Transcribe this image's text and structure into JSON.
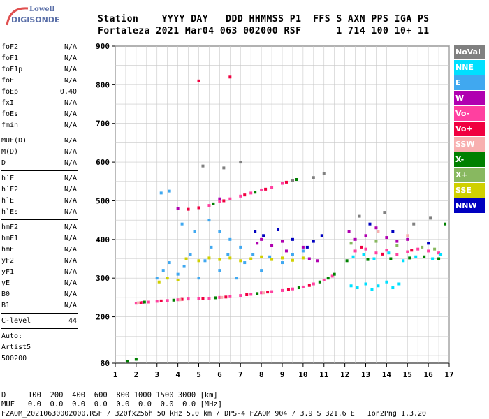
{
  "logo": {
    "brand_top": "Lowell",
    "brand_name": "DIGISONDE"
  },
  "header": {
    "line1": "Station    YYYY DAY   DDD HHMMSS P1  FFS S AXN PPS IGA PS",
    "line2": "Fortaleza 2021 Mar04 063 002000 RSF      1 714 100 10+ 11"
  },
  "params": {
    "group1": [
      {
        "name": "foF2",
        "value": "N/A"
      },
      {
        "name": "foF1",
        "value": "N/A"
      },
      {
        "name": "foF1p",
        "value": "N/A"
      },
      {
        "name": "foE",
        "value": "N/A"
      },
      {
        "name": "foEp",
        "value": "0.40"
      },
      {
        "name": "fxI",
        "value": "N/A"
      },
      {
        "name": "foEs",
        "value": "N/A"
      },
      {
        "name": "fmin",
        "value": "N/A"
      }
    ],
    "group2": [
      {
        "name": "MUF(D)",
        "value": "N/A"
      },
      {
        "name": "M(D)",
        "value": "N/A"
      },
      {
        "name": "D",
        "value": "N/A"
      }
    ],
    "group3": [
      {
        "name": "h`F",
        "value": "N/A"
      },
      {
        "name": "h`F2",
        "value": "N/A"
      },
      {
        "name": "h`E",
        "value": "N/A"
      },
      {
        "name": "h`Es",
        "value": "N/A"
      }
    ],
    "group4": [
      {
        "name": "hmF2",
        "value": "N/A"
      },
      {
        "name": "hmF1",
        "value": "N/A"
      },
      {
        "name": "hmE",
        "value": "N/A"
      },
      {
        "name": "yF2",
        "value": "N/A"
      },
      {
        "name": "yF1",
        "value": "N/A"
      },
      {
        "name": "yE",
        "value": "N/A"
      },
      {
        "name": "B0",
        "value": "N/A"
      },
      {
        "name": "B1",
        "value": "N/A"
      }
    ],
    "clevel": {
      "name": "C-level",
      "value": "44"
    },
    "auto_lines": [
      "Auto:",
      "Artist5",
      "500200"
    ]
  },
  "legend": [
    {
      "label": "NoVal",
      "color": "#808080"
    },
    {
      "label": "NNE",
      "color": "#00e0ff"
    },
    {
      "label": "E",
      "color": "#40a8f0"
    },
    {
      "label": "W",
      "color": "#b000b0"
    },
    {
      "label": "Vo-",
      "color": "#ff40a0"
    },
    {
      "label": "Vo+",
      "color": "#f00040"
    },
    {
      "label": "SSW",
      "color": "#f8b0b0"
    },
    {
      "label": "X-",
      "color": "#008000"
    },
    {
      "label": "X+",
      "color": "#88b860"
    },
    {
      "label": "SSE",
      "color": "#d0d000"
    },
    {
      "label": "NNW",
      "color": "#0000c0"
    }
  ],
  "footer": {
    "d_line": "D     100  200  400  600  800 1000 1500 3000 [km]",
    "muf_line": "MUF   0.0  0.0  0.0  0.0  0.0  0.0  0.0  0.0 [MHz]",
    "file_line": "FZAOM_20210630002000.RSF / 320fx256h 50 kHz 5.0 km / DPS-4 FZAOM 904 / 3.9 S 321.6 E   Ion2Png 1.3.20"
  },
  "chart_data": {
    "type": "scatter",
    "xlabel": "",
    "ylabel": "",
    "xlim": [
      1,
      17
    ],
    "ylim": [
      80,
      900
    ],
    "x_ticks": [
      1,
      2,
      3,
      4,
      5,
      6,
      7,
      8,
      9,
      10,
      11,
      12,
      13,
      14,
      15,
      16,
      17
    ],
    "y_ticks": [
      80,
      200,
      300,
      400,
      500,
      600,
      700,
      800,
      900
    ],
    "grid": true,
    "series": [
      {
        "color": "#ff40a0",
        "points": [
          [
            2.0,
            235
          ],
          [
            2.3,
            237
          ],
          [
            2.6,
            238
          ],
          [
            3.0,
            240
          ],
          [
            3.5,
            242
          ],
          [
            4.0,
            244
          ],
          [
            4.5,
            246
          ],
          [
            5.0,
            247
          ],
          [
            5.5,
            248
          ],
          [
            6.0,
            250
          ],
          [
            6.5,
            252
          ],
          [
            7.0,
            255
          ],
          [
            7.5,
            258
          ],
          [
            8.0,
            262
          ],
          [
            8.5,
            265
          ],
          [
            9.0,
            268
          ],
          [
            9.5,
            272
          ],
          [
            10.0,
            277
          ],
          [
            10.5,
            285
          ],
          [
            11.0,
            295
          ],
          [
            11.4,
            305
          ],
          [
            5.5,
            488
          ],
          [
            6.0,
            498
          ],
          [
            6.5,
            505
          ],
          [
            7.0,
            512
          ],
          [
            7.5,
            520
          ],
          [
            8.0,
            528
          ],
          [
            8.5,
            535
          ],
          [
            9.0,
            545
          ],
          [
            9.5,
            553
          ],
          [
            12.5,
            370
          ],
          [
            13.0,
            375
          ],
          [
            13.5,
            365
          ],
          [
            14.0,
            372
          ],
          [
            14.5,
            360
          ],
          [
            15.0,
            368
          ],
          [
            15.5,
            375
          ],
          [
            16.0,
            370
          ],
          [
            16.5,
            365
          ]
        ]
      },
      {
        "color": "#f00040",
        "points": [
          [
            2.2,
            236
          ],
          [
            3.2,
            241
          ],
          [
            4.2,
            245
          ],
          [
            5.2,
            247
          ],
          [
            6.3,
            251
          ],
          [
            7.3,
            257
          ],
          [
            8.3,
            264
          ],
          [
            9.3,
            270
          ],
          [
            10.3,
            281
          ],
          [
            4.5,
            478
          ],
          [
            5.0,
            482
          ],
          [
            6.2,
            500
          ],
          [
            7.2,
            515
          ],
          [
            8.2,
            530
          ],
          [
            9.2,
            548
          ],
          [
            12.8,
            380
          ],
          [
            13.8,
            362
          ],
          [
            15.2,
            372
          ],
          [
            5.0,
            810
          ],
          [
            6.5,
            820
          ]
        ]
      },
      {
        "color": "#b000b0",
        "points": [
          [
            7.8,
            390
          ],
          [
            8.0,
            400
          ],
          [
            8.5,
            385
          ],
          [
            9.0,
            395
          ],
          [
            9.2,
            370
          ],
          [
            10.0,
            380
          ],
          [
            10.3,
            350
          ],
          [
            10.7,
            345
          ],
          [
            12.2,
            420
          ],
          [
            12.5,
            400
          ],
          [
            13.0,
            410
          ],
          [
            13.5,
            430
          ],
          [
            14.0,
            405
          ],
          [
            14.5,
            395
          ],
          [
            15.0,
            400
          ],
          [
            4.0,
            480
          ],
          [
            6.0,
            505
          ]
        ]
      },
      {
        "color": "#0000c0",
        "points": [
          [
            7.7,
            420
          ],
          [
            8.1,
            410
          ],
          [
            8.8,
            425
          ],
          [
            9.5,
            400
          ],
          [
            10.2,
            380
          ],
          [
            10.5,
            395
          ],
          [
            10.9,
            410
          ],
          [
            13.2,
            440
          ],
          [
            14.3,
            420
          ],
          [
            16.0,
            390
          ]
        ]
      },
      {
        "color": "#40a8f0",
        "points": [
          [
            3.0,
            300
          ],
          [
            3.3,
            320
          ],
          [
            3.6,
            340
          ],
          [
            4.0,
            310
          ],
          [
            4.3,
            330
          ],
          [
            4.6,
            360
          ],
          [
            5.0,
            300
          ],
          [
            5.3,
            345
          ],
          [
            5.6,
            380
          ],
          [
            6.0,
            320
          ],
          [
            6.4,
            360
          ],
          [
            6.8,
            300
          ],
          [
            7.2,
            340
          ],
          [
            7.6,
            360
          ],
          [
            8.0,
            320
          ],
          [
            8.4,
            355
          ],
          [
            9.0,
            340
          ],
          [
            9.5,
            360
          ],
          [
            10.0,
            370
          ],
          [
            3.2,
            520
          ],
          [
            3.6,
            525
          ],
          [
            4.2,
            440
          ],
          [
            4.8,
            420
          ],
          [
            5.5,
            450
          ],
          [
            6.0,
            420
          ],
          [
            6.5,
            400
          ],
          [
            7.0,
            380
          ]
        ]
      },
      {
        "color": "#00e0ff",
        "points": [
          [
            12.3,
            280
          ],
          [
            12.6,
            275
          ],
          [
            13.0,
            285
          ],
          [
            13.3,
            270
          ],
          [
            13.6,
            280
          ],
          [
            14.0,
            290
          ],
          [
            14.3,
            275
          ],
          [
            14.6,
            285
          ],
          [
            12.4,
            355
          ],
          [
            12.9,
            360
          ],
          [
            13.4,
            350
          ],
          [
            14.1,
            365
          ],
          [
            14.8,
            345
          ],
          [
            15.4,
            355
          ],
          [
            16.2,
            350
          ],
          [
            16.6,
            360
          ]
        ]
      },
      {
        "color": "#008000",
        "points": [
          [
            2.4,
            238
          ],
          [
            3.8,
            243
          ],
          [
            5.8,
            249
          ],
          [
            7.8,
            260
          ],
          [
            9.8,
            275
          ],
          [
            10.8,
            290
          ],
          [
            11.2,
            300
          ],
          [
            11.5,
            310
          ],
          [
            5.7,
            492
          ],
          [
            7.7,
            522
          ],
          [
            9.7,
            555
          ],
          [
            12.1,
            345
          ],
          [
            13.1,
            348
          ],
          [
            14.2,
            350
          ],
          [
            15.1,
            352
          ],
          [
            15.8,
            355
          ],
          [
            16.5,
            350
          ],
          [
            16.8,
            440
          ],
          [
            1.6,
            85
          ],
          [
            2.0,
            90
          ]
        ]
      },
      {
        "color": "#d0d000",
        "points": [
          [
            3.1,
            290
          ],
          [
            3.5,
            300
          ],
          [
            4.0,
            295
          ],
          [
            4.4,
            350
          ],
          [
            5.0,
            345
          ],
          [
            5.5,
            352
          ],
          [
            6.0,
            348
          ],
          [
            6.5,
            352
          ],
          [
            7.0,
            345
          ],
          [
            7.5,
            350
          ],
          [
            8.0,
            355
          ],
          [
            8.5,
            348
          ],
          [
            9.0,
            352
          ],
          [
            9.5,
            346
          ],
          [
            10.0,
            352
          ]
        ]
      },
      {
        "color": "#808080",
        "points": [
          [
            5.2,
            590
          ],
          [
            6.2,
            585
          ],
          [
            7.0,
            600
          ],
          [
            9.5,
            552
          ],
          [
            10.5,
            560
          ],
          [
            11.0,
            570
          ],
          [
            12.7,
            460
          ],
          [
            13.9,
            470
          ],
          [
            15.3,
            440
          ],
          [
            16.1,
            455
          ]
        ]
      },
      {
        "color": "#88b860",
        "points": [
          [
            12.3,
            390
          ],
          [
            13.5,
            395
          ],
          [
            14.5,
            385
          ],
          [
            15.7,
            380
          ],
          [
            16.3,
            375
          ]
        ]
      },
      {
        "color": "#f8b0b0",
        "points": [
          [
            2.1,
            236
          ],
          [
            4.1,
            244
          ],
          [
            6.1,
            250
          ],
          [
            8.1,
            262
          ],
          [
            13.6,
            420
          ],
          [
            15.0,
            410
          ]
        ]
      }
    ]
  }
}
